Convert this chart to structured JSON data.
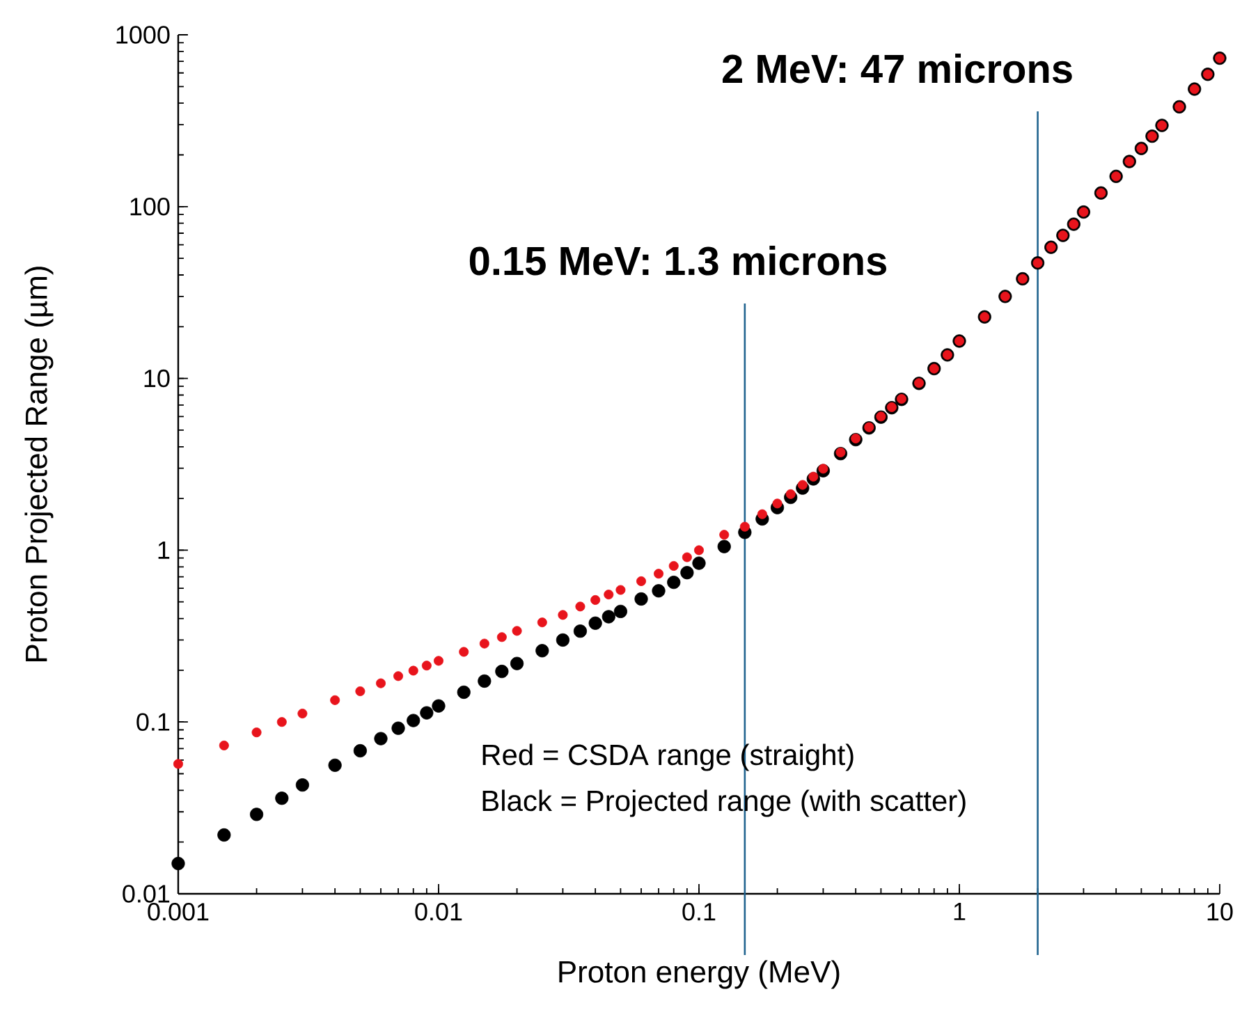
{
  "chart_data": {
    "type": "scatter",
    "xlabel": "Proton energy (MeV)",
    "ylabel": "Proton Projected Range (µm)",
    "log": "xy",
    "marker": "circle",
    "xlim": [
      0.001,
      10
    ],
    "ylim": [
      0.01,
      1000
    ],
    "xticks": [
      0.001,
      0.01,
      0.1,
      1,
      10
    ],
    "yticks": [
      0.01,
      0.1,
      1,
      10,
      100,
      1000
    ],
    "x": [
      0.001,
      0.0015,
      0.002,
      0.0025,
      0.003,
      0.004,
      0.005,
      0.006,
      0.007,
      0.008,
      0.009,
      0.01,
      0.0125,
      0.015,
      0.0175,
      0.02,
      0.025,
      0.03,
      0.035,
      0.04,
      0.045,
      0.05,
      0.06,
      0.07,
      0.08,
      0.09,
      0.1,
      0.125,
      0.15,
      0.175,
      0.2,
      0.225,
      0.25,
      0.275,
      0.3,
      0.35,
      0.4,
      0.45,
      0.5,
      0.55,
      0.6,
      0.7,
      0.8,
      0.9,
      1,
      1.25,
      1.5,
      1.75,
      2,
      2.25,
      2.5,
      2.75,
      3,
      3.5,
      4,
      4.5,
      5,
      5.5,
      6,
      7,
      8,
      9,
      10
    ],
    "series": [
      {
        "color": "#000000",
        "values": [
          0.015,
          0.022,
          0.029,
          0.036,
          0.043,
          0.056,
          0.068,
          0.08,
          0.092,
          0.102,
          0.113,
          0.124,
          0.149,
          0.173,
          0.197,
          0.219,
          0.26,
          0.3,
          0.338,
          0.376,
          0.41,
          0.44,
          0.52,
          0.58,
          0.65,
          0.74,
          0.84,
          1.05,
          1.27,
          1.52,
          1.77,
          2.03,
          2.3,
          2.6,
          2.9,
          3.65,
          4.4,
          5.15,
          5.95,
          6.75,
          7.55,
          9.35,
          11.4,
          13.7,
          16.5,
          22.8,
          30,
          38,
          47,
          58,
          68,
          79,
          93,
          120,
          150,
          183,
          218,
          257,
          297,
          381,
          483,
          589,
          731
        ]
      },
      {
        "color": "#e8141c",
        "values": [
          0.057,
          0.073,
          0.087,
          0.1,
          0.112,
          0.134,
          0.151,
          0.168,
          0.185,
          0.199,
          0.213,
          0.227,
          0.256,
          0.286,
          0.312,
          0.339,
          0.38,
          0.42,
          0.47,
          0.513,
          0.552,
          0.587,
          0.66,
          0.73,
          0.81,
          0.91,
          1.0,
          1.23,
          1.37,
          1.62,
          1.87,
          2.12,
          2.4,
          2.68,
          2.98,
          3.71,
          4.47,
          5.2,
          6.0,
          6.8,
          7.6,
          9.4,
          11.4,
          13.7,
          16.5,
          22.8,
          30,
          38,
          47,
          58,
          68,
          79,
          93,
          120,
          150,
          183,
          218,
          257,
          297,
          381,
          483,
          589,
          731
        ]
      }
    ],
    "ref_lines": [
      {
        "axis": "x",
        "value": 0.15,
        "label": "0.15 MeV: 1.3 microns",
        "color": "#20638f"
      },
      {
        "axis": "x",
        "value": 2,
        "label": "2 MeV: 47 microns",
        "color": "#20638f"
      }
    ],
    "annotations": [
      "Red = CSDA range (straight)",
      "Black = Projected range (with scatter)"
    ]
  }
}
